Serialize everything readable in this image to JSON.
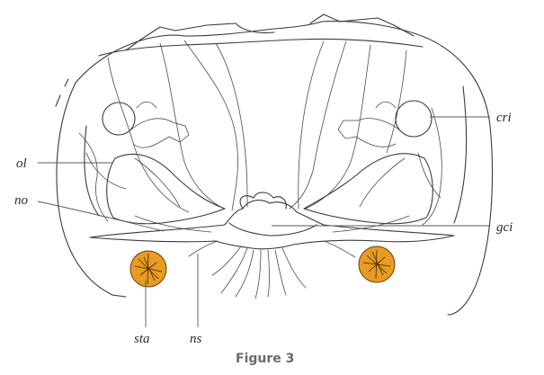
{
  "figure": {
    "caption": "Figure 3",
    "colors": {
      "line": "#3a3a3a",
      "statocyst_fill": "#e79b22",
      "statocyst_outline": "#6b3f0c",
      "caption": "#6b6b6b"
    }
  },
  "labels": {
    "cri": "cri",
    "ol": "ol",
    "no": "no",
    "gci": "gci",
    "sta": "sta",
    "ns": "ns"
  }
}
